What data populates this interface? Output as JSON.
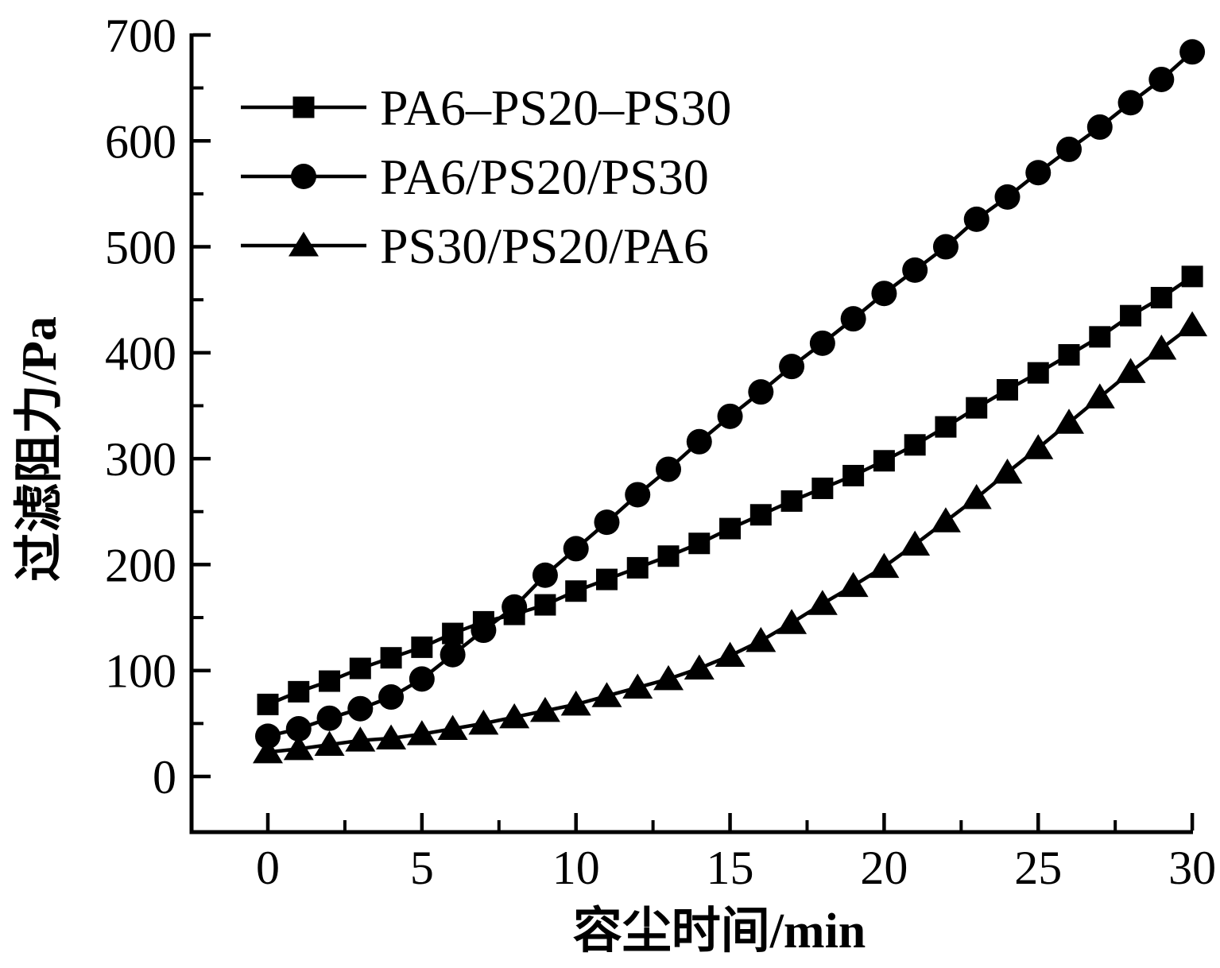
{
  "figure": {
    "background_color": "#ffffff",
    "ink_color": "#000000"
  },
  "chart_data": {
    "type": "line",
    "title": "",
    "xlabel": "容尘时间/min",
    "ylabel": "过滤阻力/Pa",
    "xlim": [
      0,
      30
    ],
    "ylim": [
      0,
      700
    ],
    "x_ticks": [
      0,
      5,
      10,
      15,
      20,
      25,
      30
    ],
    "y_ticks": [
      0,
      100,
      200,
      300,
      400,
      500,
      600,
      700
    ],
    "x_minor_tick_step": 2.5,
    "y_minor_tick_step": 50,
    "grid": false,
    "legend_position": "upper-left-inside",
    "x": [
      0,
      1,
      2,
      3,
      4,
      5,
      6,
      7,
      8,
      9,
      10,
      11,
      12,
      13,
      14,
      15,
      16,
      17,
      18,
      19,
      20,
      21,
      22,
      23,
      24,
      25,
      26,
      27,
      28,
      29,
      30
    ],
    "series": [
      {
        "name": "PA6–PS20–PS30",
        "marker": "square",
        "color": "#000000",
        "values": [
          68,
          80,
          90,
          102,
          112,
          122,
          135,
          146,
          153,
          162,
          175,
          186,
          197,
          208,
          220,
          234,
          247,
          260,
          272,
          284,
          298,
          313,
          330,
          348,
          365,
          381,
          398,
          415,
          435,
          452,
          472
        ]
      },
      {
        "name": "PA6/PS20/PS30",
        "marker": "circle",
        "color": "#000000",
        "values": [
          38,
          45,
          55,
          64,
          75,
          92,
          115,
          138,
          160,
          190,
          215,
          240,
          266,
          290,
          316,
          340,
          363,
          387,
          409,
          432,
          456,
          478,
          500,
          526,
          547,
          570,
          592,
          613,
          636,
          658,
          684
        ]
      },
      {
        "name": "PS30/PS20/PA6",
        "marker": "triangle",
        "color": "#000000",
        "values": [
          23,
          26,
          30,
          34,
          36,
          40,
          45,
          50,
          56,
          62,
          68,
          76,
          84,
          92,
          102,
          114,
          128,
          145,
          163,
          180,
          198,
          219,
          241,
          263,
          287,
          310,
          334,
          358,
          382,
          404,
          426
        ]
      }
    ]
  }
}
